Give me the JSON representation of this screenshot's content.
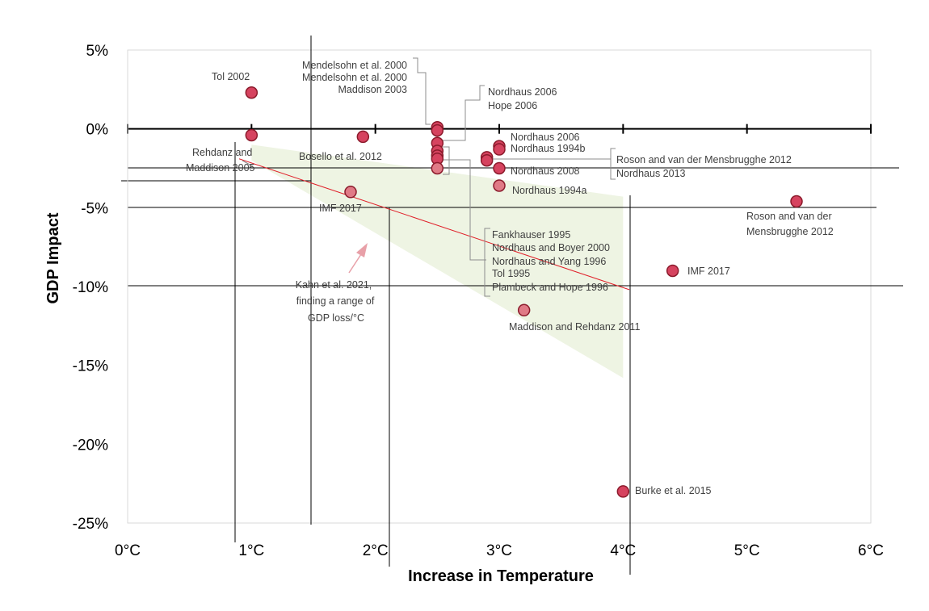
{
  "chart_data": {
    "type": "scatter",
    "xlabel": "Increase in Temperature",
    "ylabel": "GDP Impact",
    "xlim": [
      0,
      6
    ],
    "ylim": [
      -25,
      5
    ],
    "x_ticks": [
      "0°C",
      "1°C",
      "2°C",
      "3°C",
      "4°C",
      "5°C",
      "6°C"
    ],
    "x_tick_values": [
      0,
      1,
      2,
      3,
      4,
      5,
      6
    ],
    "y_ticks": [
      "5%",
      "0%",
      "-5%",
      "-10%",
      "-15%",
      "-20%",
      "-25%"
    ],
    "y_tick_values": [
      5,
      0,
      -5,
      -10,
      -15,
      -20,
      -25
    ],
    "colors": {
      "point": "#d6435f",
      "point_light": "#e07a86",
      "point_stroke": "#8b1a2b",
      "band": "#eef4e3",
      "trend": "#e0202a",
      "arrow": "#e8a0a8"
    },
    "points": [
      {
        "x": 1.0,
        "y": 2.3,
        "label": "Tol 2002"
      },
      {
        "x": 1.0,
        "y": -0.4,
        "label": ""
      },
      {
        "x": 1.9,
        "y": -0.5,
        "label": ""
      },
      {
        "x": 1.8,
        "y": -4.0,
        "label": "IMF 2017",
        "light": true
      },
      {
        "x": 2.5,
        "y": 0.1,
        "label": ""
      },
      {
        "x": 2.5,
        "y": -0.1,
        "label": ""
      },
      {
        "x": 2.5,
        "y": -0.9,
        "label": ""
      },
      {
        "x": 2.5,
        "y": -1.4,
        "label": ""
      },
      {
        "x": 2.5,
        "y": -1.7,
        "label": ""
      },
      {
        "x": 2.5,
        "y": -1.9,
        "label": ""
      },
      {
        "x": 2.5,
        "y": -2.5,
        "label": "",
        "light": true
      },
      {
        "x": 2.9,
        "y": -1.8,
        "label": ""
      },
      {
        "x": 2.9,
        "y": -2.0,
        "label": ""
      },
      {
        "x": 3.0,
        "y": -1.1,
        "label": ""
      },
      {
        "x": 3.0,
        "y": -1.3,
        "label": ""
      },
      {
        "x": 3.0,
        "y": -2.5,
        "label": ""
      },
      {
        "x": 3.0,
        "y": -3.6,
        "label": "",
        "light": true
      },
      {
        "x": 3.2,
        "y": -11.5,
        "label": "",
        "light": true
      },
      {
        "x": 4.0,
        "y": -23.0,
        "label": "Burke et al. 2015"
      },
      {
        "x": 4.4,
        "y": -9.0,
        "label": "IMF 2017"
      },
      {
        "x": 5.4,
        "y": -4.6,
        "label": ""
      }
    ],
    "labels": {
      "tol2002": "Tol 2002",
      "rehdanz1": "Rehdanz and",
      "rehdanz2": "Maddison 2005",
      "bosello": "Bosello et al. 2012",
      "imf2017a": "IMF 2017",
      "mend1": "Mendelsohn et al. 2000",
      "mend2": "Mendelsohn et al. 2000",
      "maddison2003": "Maddison 2003",
      "nordhaus2006a": "Nordhaus 2006",
      "hope2006": "Hope 2006",
      "nordhaus2006b": "Nordhaus 2006",
      "nordhaus1994b": "Nordhaus 1994b",
      "nordhaus2008": "Nordhaus 2008",
      "nordhaus1994a": "Nordhaus 1994a",
      "roson1": "Roson and van der Mensbrugghe 2012",
      "nordhaus2013": "Nordhaus 2013",
      "roson2a": "Roson and van der",
      "roson2b": "Mensbrugghe 2012",
      "imf2017b": "IMF 2017",
      "fank": "Fankhauser 1995",
      "nb2000": "Nordhaus and Boyer 2000",
      "ny1996": "Nordhaus and Yang 1996",
      "tol1995": "Tol 1995",
      "plambeck": "Plambeck and Hope 1996",
      "mr2011": "Maddison and Rehdanz 2011",
      "burke": "Burke et al. 2015",
      "kahn1": "Kahn et al. 2021,",
      "kahn2": "finding a range of",
      "kahn3": "GDP loss/°C"
    },
    "band": {
      "upper": [
        [
          1.0,
          -1.0
        ],
        [
          4.0,
          -4.3
        ]
      ],
      "lower": [
        [
          1.0,
          -2.0
        ],
        [
          4.0,
          -15.8
        ]
      ]
    },
    "trend": [
      [
        0.9,
        -1.9
      ],
      [
        4.05,
        -10.2
      ]
    ],
    "grid": false,
    "legend": "none"
  }
}
